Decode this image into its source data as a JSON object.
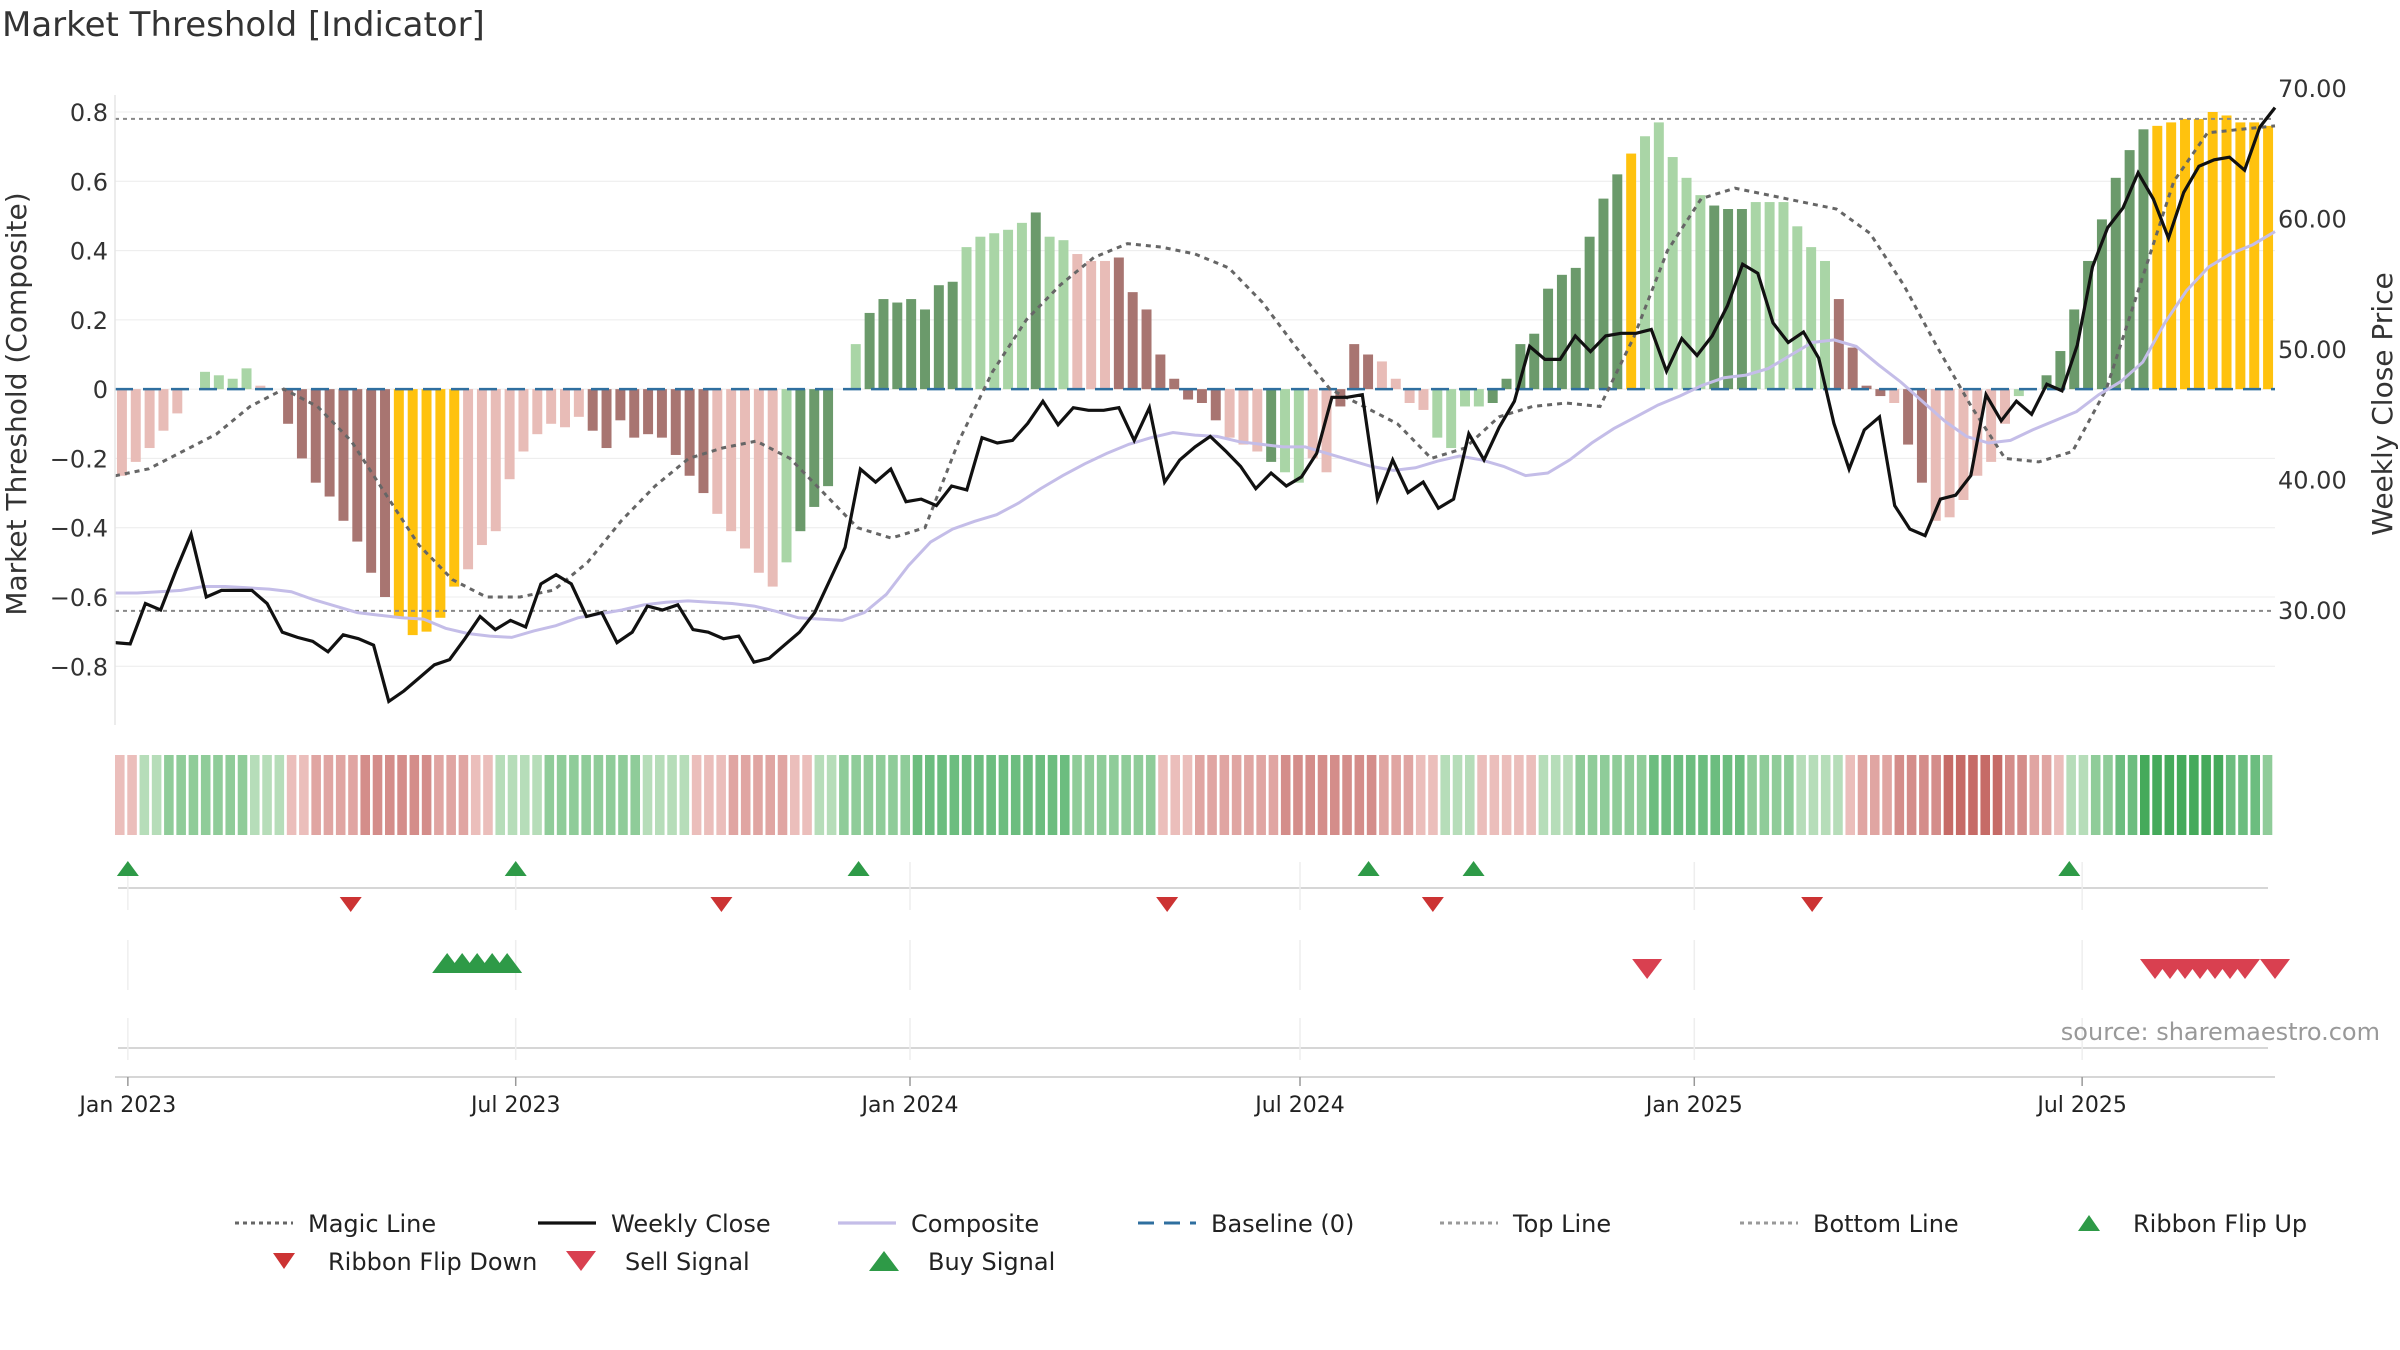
{
  "title": "Market Threshold [Indicator]",
  "source_label": "source: sharemaestro.com",
  "colors": {
    "dark_green": "#6b9a6b",
    "light_green": "#a9d5a6",
    "dark_red": "#a87571",
    "light_red": "#e8bcb7",
    "extreme": "#ffc20e",
    "weekly_close": "#111111",
    "composite": "#c4bde8",
    "magic": "#666666",
    "baseline": "#2f6f9f",
    "threshold_line": "#888888",
    "buy": "#2e9a47",
    "sell": "#d94050",
    "flip_down": "#cc3333"
  },
  "chart_data": {
    "type": "bar",
    "title": "Market Threshold [Indicator]",
    "ylabel": "Market Threshold (Composite)",
    "y2label": "Weekly Close Price",
    "ylim": [
      -0.88,
      0.8
    ],
    "y2lim": [
      20.0,
      70.0
    ],
    "yticks": [
      "0.8",
      "0.6",
      "0.4",
      "0.2",
      "0",
      "−0.2",
      "−0.4",
      "−0.6",
      "−0.8"
    ],
    "y2ticks": [
      "70.00",
      "60.00",
      "50.00",
      "40.00",
      "30.00"
    ],
    "x_start": "2022-12-26",
    "x_end": "2025-09-29",
    "xticks": [
      {
        "date": "2023-01-01",
        "label": "Jan 2023"
      },
      {
        "date": "2023-07-01",
        "label": "Jul 2023"
      },
      {
        "date": "2024-01-01",
        "label": "Jan 2024"
      },
      {
        "date": "2024-07-01",
        "label": "Jul 2024"
      },
      {
        "date": "2025-01-01",
        "label": "Jan 2025"
      },
      {
        "date": "2025-07-01",
        "label": "Jul 2025"
      }
    ],
    "top_line": 0.78,
    "bottom_line": -0.64,
    "composite_bars": [
      -0.25,
      -0.21,
      -0.17,
      -0.12,
      -0.07,
      0.0,
      0.05,
      0.04,
      0.03,
      0.06,
      0.01,
      0.0,
      -0.1,
      -0.2,
      -0.27,
      -0.31,
      -0.38,
      -0.44,
      -0.53,
      -0.6,
      -0.66,
      -0.71,
      -0.7,
      -0.66,
      -0.57,
      -0.52,
      -0.45,
      -0.41,
      -0.26,
      -0.18,
      -0.13,
      -0.1,
      -0.11,
      -0.08,
      -0.12,
      -0.17,
      -0.09,
      -0.14,
      -0.13,
      -0.14,
      -0.19,
      -0.25,
      -0.3,
      -0.36,
      -0.41,
      -0.46,
      -0.53,
      -0.57,
      -0.5,
      -0.41,
      -0.34,
      -0.28,
      0.0,
      0.13,
      0.22,
      0.26,
      0.25,
      0.26,
      0.23,
      0.3,
      0.31,
      0.41,
      0.44,
      0.45,
      0.46,
      0.48,
      0.51,
      0.44,
      0.43,
      0.39,
      0.37,
      0.37,
      0.38,
      0.28,
      0.23,
      0.1,
      0.03,
      -0.03,
      -0.04,
      -0.09,
      -0.14,
      -0.16,
      -0.18,
      -0.21,
      -0.24,
      -0.27,
      -0.2,
      -0.24,
      -0.05,
      0.13,
      0.1,
      0.08,
      0.03,
      -0.04,
      -0.06,
      -0.14,
      -0.17,
      -0.05,
      -0.05,
      -0.04,
      0.03,
      0.13,
      0.16,
      0.29,
      0.33,
      0.35,
      0.44,
      0.55,
      0.62,
      0.68,
      0.73,
      0.77,
      0.67,
      0.61,
      0.56,
      0.53,
      0.52,
      0.52,
      0.54,
      0.54,
      0.54,
      0.47,
      0.41,
      0.37,
      0.26,
      0.12,
      0.01,
      -0.02,
      -0.04,
      -0.16,
      -0.27,
      -0.38,
      -0.37,
      -0.32,
      -0.25,
      -0.21,
      -0.1,
      -0.02,
      0.0,
      0.04,
      0.11,
      0.23,
      0.37,
      0.49,
      0.61,
      0.69,
      0.75,
      0.76,
      0.77,
      0.78,
      0.78,
      0.8,
      0.79,
      0.77,
      0.77,
      0.76
    ],
    "bar_color_classes": "rrrrrgggggrrDDDDDDDDYYYYYrrrrrrrrrDDDDDDDDDrrrrrgGGGggGGGGGGGgggggGggrrrDDDDDDDDrrrGggrrDDDrrrrggggGGGGGGGGGGYgggggGGGggggggDDDDrDDrrrrrrgGGGGGGGGGYYYYYYYYYY",
    "magic_line": [
      -0.25,
      -0.23,
      -0.18,
      -0.13,
      -0.05,
      0.0,
      -0.05,
      -0.15,
      -0.3,
      -0.45,
      -0.55,
      -0.6,
      -0.6,
      -0.58,
      -0.5,
      -0.38,
      -0.28,
      -0.2,
      -0.17,
      -0.15,
      -0.2,
      -0.3,
      -0.4,
      -0.43,
      -0.4,
      -0.15,
      0.05,
      0.2,
      0.3,
      0.38,
      0.42,
      0.41,
      0.39,
      0.35,
      0.25,
      0.12,
      0.0,
      -0.05,
      -0.1,
      -0.2,
      -0.17,
      -0.08,
      -0.05,
      -0.04,
      -0.05,
      0.15,
      0.4,
      0.55,
      0.58,
      0.56,
      0.54,
      0.52,
      0.45,
      0.3,
      0.12,
      -0.05,
      -0.2,
      -0.21,
      -0.18,
      0.0,
      0.3,
      0.6,
      0.74,
      0.75,
      0.76
    ],
    "weekly_close": [
      27.5,
      27.4,
      30.5,
      30.0,
      33.0,
      35.8,
      31.0,
      31.5,
      31.5,
      31.5,
      30.5,
      28.3,
      27.9,
      27.6,
      26.8,
      28.1,
      27.8,
      27.3,
      23.0,
      23.8,
      24.8,
      25.8,
      26.2,
      27.8,
      29.5,
      28.5,
      29.2,
      28.7,
      32.0,
      32.7,
      32.0,
      29.5,
      29.8,
      27.5,
      28.3,
      30.3,
      30.0,
      30.4,
      28.5,
      28.3,
      27.8,
      28.0,
      26.0,
      26.3,
      27.3,
      28.3,
      29.8,
      32.3,
      34.8,
      40.8,
      39.8,
      40.8,
      38.3,
      38.5,
      38.0,
      39.5,
      39.2,
      43.2,
      42.8,
      43.0,
      44.3,
      46.0,
      44.2,
      45.5,
      45.3,
      45.3,
      45.5,
      43.0,
      45.5,
      39.8,
      41.5,
      42.5,
      43.3,
      42.2,
      41.0,
      39.3,
      40.5,
      39.5,
      40.2,
      42.0,
      46.3,
      46.3,
      46.5,
      38.5,
      41.5,
      39.0,
      39.8,
      37.8,
      38.5,
      43.5,
      41.5,
      44.0,
      46.0,
      50.2,
      49.2,
      49.2,
      51.0,
      49.8,
      51.0,
      51.2,
      51.2,
      51.5,
      48.3,
      50.8,
      49.5,
      51.0,
      53.3,
      56.5,
      55.8,
      52.0,
      50.5,
      51.3,
      49.3,
      44.3,
      40.8,
      43.8,
      44.8,
      38.0,
      36.2,
      35.7,
      38.5,
      38.8,
      40.3,
      46.5,
      44.5,
      46.0,
      45.0,
      47.3,
      46.8,
      50.3,
      56.3,
      59.3,
      60.8,
      63.5,
      61.5,
      58.5,
      62.0,
      64.0,
      64.5,
      64.7,
      63.7,
      67.0,
      68.5
    ],
    "composite_line": [
      31.3,
      31.3,
      31.4,
      31.5,
      31.8,
      31.8,
      31.7,
      31.6,
      31.4,
      30.8,
      30.3,
      29.8,
      29.6,
      29.4,
      29.3,
      28.6,
      28.2,
      28.0,
      27.9,
      28.4,
      28.8,
      29.4,
      29.7,
      30.0,
      30.4,
      30.6,
      30.7,
      30.6,
      30.5,
      30.3,
      29.9,
      29.4,
      29.3,
      29.2,
      29.8,
      31.2,
      33.4,
      35.2,
      36.2,
      36.8,
      37.3,
      38.2,
      39.3,
      40.3,
      41.2,
      42.0,
      42.7,
      43.2,
      43.6,
      43.4,
      43.3,
      42.9,
      42.7,
      42.5,
      42.5,
      42.0,
      41.5,
      41.0,
      40.7,
      40.9,
      41.4,
      41.8,
      41.5,
      41.0,
      40.3,
      40.5,
      41.5,
      42.8,
      43.9,
      44.8,
      45.7,
      46.4,
      47.2,
      47.8,
      48.0,
      48.5,
      49.5,
      50.5,
      50.7,
      50.2,
      48.8,
      47.5,
      46.0,
      44.5,
      43.3,
      42.8,
      43.0,
      43.8,
      44.5,
      45.2,
      46.5,
      47.5,
      49.0,
      52.0,
      54.5,
      56.3,
      57.3,
      58.0,
      59.0
    ],
    "ribbon_levels": [
      -1,
      -1,
      1,
      1,
      2,
      2,
      2,
      2,
      2,
      2,
      2,
      1,
      1,
      1,
      -1,
      -1,
      -2,
      -2,
      -2,
      -2,
      -3,
      -3,
      -3,
      -3,
      -3,
      -3,
      -2,
      -2,
      -2,
      -1,
      -1,
      1,
      1,
      1,
      1,
      2,
      2,
      2,
      2,
      2,
      2,
      2,
      2,
      1,
      1,
      1,
      1,
      -1,
      -1,
      -1,
      -2,
      -2,
      -2,
      -2,
      -2,
      -1,
      -1,
      1,
      1,
      2,
      2,
      2,
      2,
      2,
      2,
      3,
      3,
      3,
      3,
      3,
      3,
      3,
      3,
      3,
      3,
      3,
      3,
      3,
      2,
      2,
      2,
      2,
      2,
      2,
      2,
      -1,
      -1,
      -1,
      -2,
      -2,
      -2,
      -2,
      -2,
      -2,
      -2,
      -3,
      -3,
      -3,
      -3,
      -3,
      -3,
      -3,
      -3,
      -2,
      -2,
      -2,
      -1,
      -1,
      1,
      1,
      1,
      -1,
      -1,
      -1,
      -1,
      -1,
      1,
      1,
      1,
      2,
      2,
      2,
      2,
      2,
      2,
      3,
      3,
      3,
      3,
      3,
      3,
      3,
      3,
      2,
      2,
      2,
      2,
      1,
      1,
      1,
      1,
      -1,
      -2,
      -2,
      -2,
      -3,
      -3,
      -3,
      -3,
      -4,
      -4,
      -4,
      -4,
      -4,
      -3,
      -3,
      -2,
      -2,
      -1,
      1,
      1,
      2,
      2,
      3,
      3,
      4,
      4,
      4,
      4,
      4,
      4,
      4,
      3,
      3,
      3,
      2
    ],
    "ribbon_flip_up": [
      "2023-01-01",
      "2023-07-01",
      "2023-12-08",
      "2024-08-02",
      "2024-09-20",
      "2025-06-25"
    ],
    "ribbon_flip_down": [
      "2023-04-15",
      "2023-10-05",
      "2024-04-30",
      "2024-09-01",
      "2025-02-25"
    ],
    "buy_signals": [
      "2023-05-30",
      "2023-06-06",
      "2023-06-13",
      "2023-06-20",
      "2023-06-27"
    ],
    "sell_signals": [
      "2024-12-10",
      "2025-08-04",
      "2025-08-11",
      "2025-08-18",
      "2025-08-25",
      "2025-09-01",
      "2025-09-08",
      "2025-09-15",
      "2025-09-29"
    ]
  },
  "legend": [
    {
      "label": "Magic Line",
      "type": "dotted",
      "color": "#666666"
    },
    {
      "label": "Weekly Close",
      "type": "solid",
      "color": "#111111"
    },
    {
      "label": "Composite",
      "type": "solid",
      "color": "#c4bde8"
    },
    {
      "label": "Baseline (0)",
      "type": "dashed",
      "color": "#2f6f9f"
    },
    {
      "label": "Top Line",
      "type": "dotted",
      "color": "#999999"
    },
    {
      "label": "Bottom Line",
      "type": "dotted",
      "color": "#999999"
    },
    {
      "label": "Ribbon Flip Up",
      "type": "tri-up",
      "color": "#2e9a47"
    },
    {
      "label": "Ribbon Flip Down",
      "type": "tri-down",
      "color": "#cc3333"
    },
    {
      "label": "Sell Signal",
      "type": "tri-down-lg",
      "color": "#d94050"
    },
    {
      "label": "Buy Signal",
      "type": "tri-up-lg",
      "color": "#2e9a47"
    }
  ]
}
